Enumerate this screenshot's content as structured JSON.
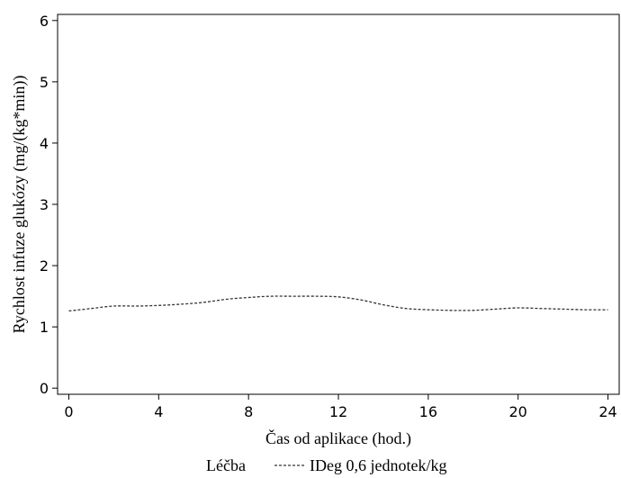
{
  "chart_data": {
    "type": "line",
    "xlabel": "Čas od aplikace (hod.)",
    "ylabel": "Rychlost infuze glukózy  (mg/(kg*min))",
    "xlim": [
      -0.5,
      24.5
    ],
    "ylim": [
      -0.1,
      6.1
    ],
    "x_ticks": [
      0,
      4,
      8,
      12,
      16,
      20,
      24
    ],
    "y_ticks": [
      0,
      1,
      2,
      3,
      4,
      5,
      6
    ],
    "grid": false,
    "legend": {
      "position": "bottom",
      "title": "Léčba",
      "entries": [
        "IDeg 0,6 jednotek/kg"
      ]
    },
    "series": [
      {
        "name": "IDeg 0,6 jednotek/kg",
        "line_style": "dashed",
        "color": "#333333",
        "x": [
          0,
          1,
          2,
          3,
          4,
          5,
          6,
          7,
          8,
          9,
          10,
          11,
          12,
          13,
          14,
          15,
          16,
          17,
          18,
          19,
          20,
          21,
          22,
          23,
          24
        ],
        "y": [
          1.26,
          1.3,
          1.34,
          1.34,
          1.35,
          1.37,
          1.4,
          1.45,
          1.48,
          1.5,
          1.5,
          1.5,
          1.49,
          1.44,
          1.36,
          1.3,
          1.28,
          1.27,
          1.27,
          1.29,
          1.31,
          1.3,
          1.29,
          1.28,
          1.28
        ]
      }
    ]
  }
}
